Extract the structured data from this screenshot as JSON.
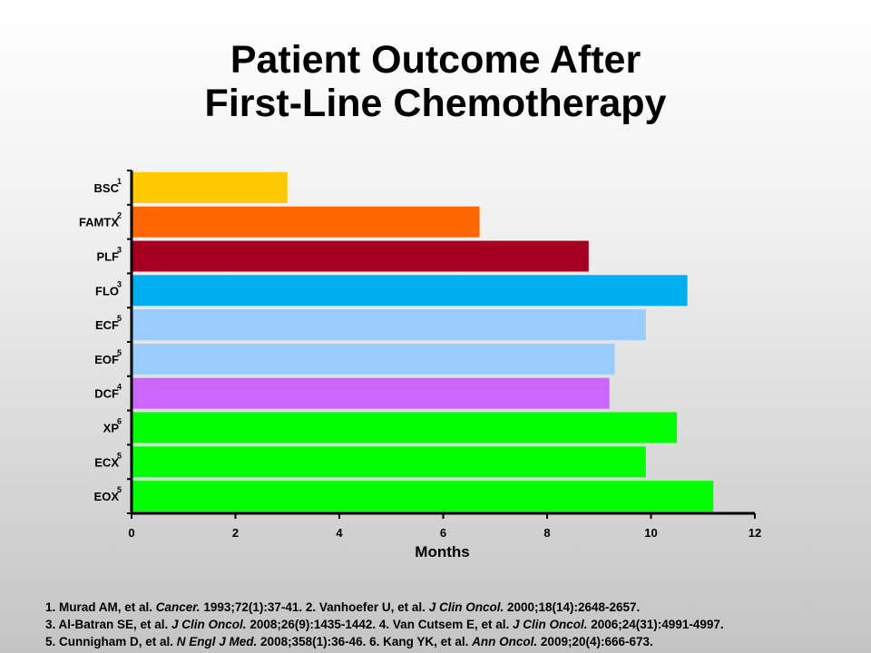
{
  "title": {
    "line1": "Patient Outcome After",
    "line2": "First-Line Chemotherapy"
  },
  "chart_data": {
    "type": "bar",
    "orientation": "horizontal",
    "categories": [
      "BSC",
      "FAMTX",
      "PLF",
      "FLO",
      "ECF",
      "EOF",
      "DCF",
      "XP",
      "ECX",
      "EOX"
    ],
    "superscripts": [
      "1",
      "2",
      "3",
      "3",
      "5",
      "5",
      "4",
      "6",
      "5",
      "5"
    ],
    "values": [
      3.0,
      6.7,
      8.8,
      10.7,
      9.9,
      9.3,
      9.2,
      10.5,
      9.9,
      11.2
    ],
    "colors": [
      "#FFC800",
      "#FF6600",
      "#A50021",
      "#00AEEF",
      "#99CCFF",
      "#99CCFF",
      "#CC66FF",
      "#00FF00",
      "#00FF00",
      "#00FF00"
    ],
    "xlabel": "Months",
    "ylabel": "",
    "xlim": [
      0,
      12
    ],
    "xticks": [
      "0",
      "2",
      "4",
      "6",
      "8",
      "10",
      "12"
    ],
    "grid": false,
    "legend": "none"
  },
  "references": [
    [
      {
        "t": "1. Murad AM, et al. "
      },
      {
        "t": "Cancer.",
        "i": true
      },
      {
        "t": " 1993;72(1):37-41. 2. Vanhoefer U, et al. "
      },
      {
        "t": "J Clin Oncol.",
        "i": true
      },
      {
        "t": " 2000;18(14):2648-2657."
      }
    ],
    [
      {
        "t": "3. Al-Batran  SE, et al. "
      },
      {
        "t": "J Clin Oncol.",
        "i": true
      },
      {
        "t": " 2008;26(9):1435-1442. 4. Van Cutsem E, et al. "
      },
      {
        "t": "J Clin Oncol.",
        "i": true
      },
      {
        "t": " 2006;24(31):4991-4997."
      }
    ],
    [
      {
        "t": "5. Cunnigham D, et al. "
      },
      {
        "t": "N Engl J Med.",
        "i": true
      },
      {
        "t": " 2008;358(1):36-46. 6. Kang YK, et al. "
      },
      {
        "t": "Ann Oncol.",
        "i": true
      },
      {
        "t": " 2009;20(4):666-673."
      }
    ]
  ]
}
